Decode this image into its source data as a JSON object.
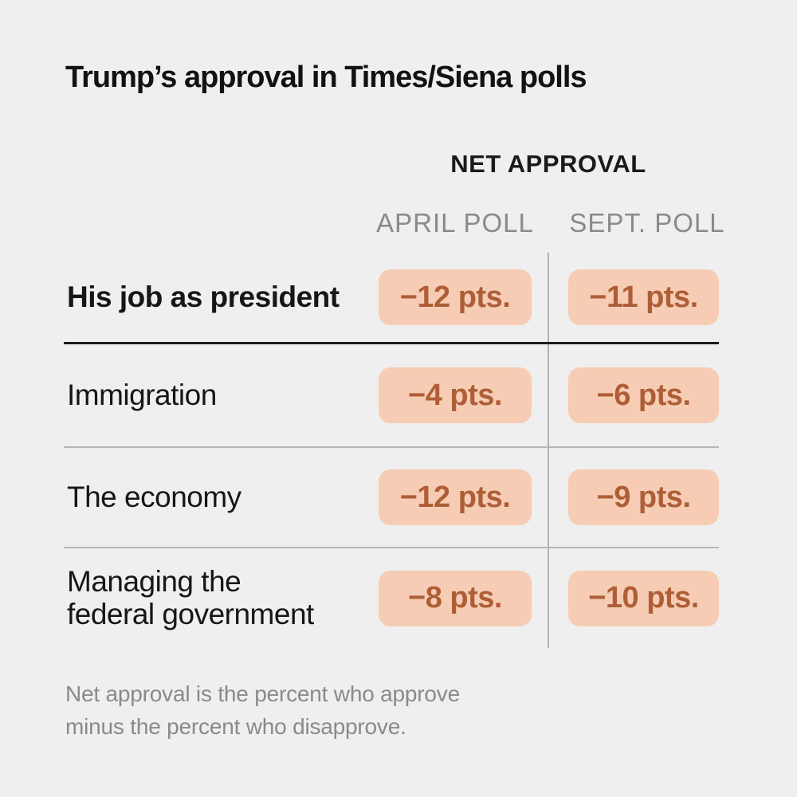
{
  "title": "Trump’s approval in Times/Siena polls",
  "table": {
    "group_header": "NET APPROVAL",
    "columns": [
      "APRIL POLL",
      "SEPT. POLL"
    ],
    "rows": [
      {
        "label": "His job as president",
        "april": "−12 pts.",
        "sept": "−11 pts."
      },
      {
        "label": "Immigration",
        "april": "−4 pts.",
        "sept": "−6 pts."
      },
      {
        "label": "The economy",
        "april": "−12 pts.",
        "sept": "−9 pts."
      },
      {
        "label": "Managing the\nfederal government",
        "april": "−8 pts.",
        "sept": "−10 pts."
      }
    ]
  },
  "note": "Net approval is the percent who approve minus the percent who disapprove.",
  "colors": {
    "background": "#efefef",
    "pill_background": "#f6cdb4",
    "pill_text": "#ae5e37",
    "heading_text": "#121212",
    "muted_text": "#8a8a8a",
    "dark_rule": "#1c1c1c",
    "light_rule": "#b7b7b7"
  },
  "chart_data": {
    "type": "table",
    "title": "Trump’s approval in Times/Siena polls",
    "column_group_header": "NET APPROVAL",
    "columns": [
      "APRIL POLL",
      "SEPT. POLL"
    ],
    "unit": "pts.",
    "rows": [
      {
        "category": "His job as president",
        "april_poll": -12,
        "sept_poll": -11
      },
      {
        "category": "Immigration",
        "april_poll": -4,
        "sept_poll": -6
      },
      {
        "category": "The economy",
        "april_poll": -12,
        "sept_poll": -9
      },
      {
        "category": "Managing the federal government",
        "april_poll": -8,
        "sept_poll": -10
      }
    ],
    "note": "Net approval is the percent who approve minus the percent who disapprove."
  }
}
